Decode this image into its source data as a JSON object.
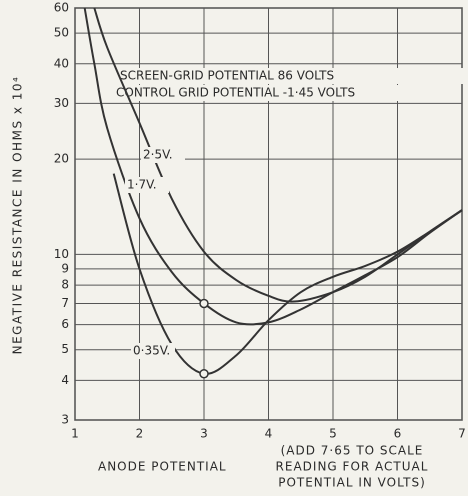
{
  "chart_data": {
    "type": "line",
    "annotations": [
      "SCREEN-GRID POTENTIAL 86 VOLTS",
      "CONTROL GRID POTENTIAL -1·45 VOLTS"
    ],
    "xlabel": "ANODE POTENTIAL",
    "xnote": [
      "(ADD 7·65 TO SCALE",
      "READING FOR ACTUAL",
      "POTENTIAL IN VOLTS)"
    ],
    "ylabel": "NEGATIVE RESISTANCE IN OHMS x 10⁴",
    "xlim": [
      1,
      7
    ],
    "xticks": [
      1,
      2,
      3,
      4,
      5,
      6,
      7
    ],
    "ylim": [
      3,
      60
    ],
    "yticks": [
      3,
      4,
      5,
      6,
      7,
      8,
      9,
      10,
      20,
      30,
      40,
      50,
      60
    ],
    "log_y": true,
    "grid": true,
    "series": [
      {
        "name": "2·5V.",
        "color": "#333333",
        "x": [
          1.3,
          1.5,
          2,
          2.5,
          3,
          3.5,
          4,
          4.4,
          5,
          5.5,
          6,
          6.5,
          7
        ],
        "values": [
          60,
          45,
          26,
          15,
          10.2,
          8.3,
          7.4,
          7.1,
          7.6,
          8.5,
          10,
          11.8,
          13.8
        ]
      },
      {
        "name": "1·7V.",
        "color": "#333333",
        "x": [
          1.15,
          1.3,
          1.5,
          2,
          2.5,
          3,
          3.5,
          4,
          4.5,
          5,
          5.5,
          6,
          6.5,
          7
        ],
        "values": [
          60,
          40,
          25,
          13,
          8.8,
          7,
          6.1,
          6.1,
          6.7,
          7.6,
          8.6,
          9.8,
          11.7,
          13.8
        ]
      },
      {
        "name": "0·35V.",
        "color": "#333333",
        "x": [
          1.6,
          2,
          2.5,
          3,
          3.5,
          4,
          4.5,
          5,
          5.5,
          6,
          6.5,
          7
        ],
        "values": [
          18,
          9,
          5.2,
          4.2,
          4.8,
          6.2,
          7.6,
          8.5,
          9.2,
          10.2,
          11.8,
          13.8
        ]
      }
    ],
    "points": {
      "x": [
        3,
        3
      ],
      "values": [
        7,
        4.2
      ]
    }
  }
}
